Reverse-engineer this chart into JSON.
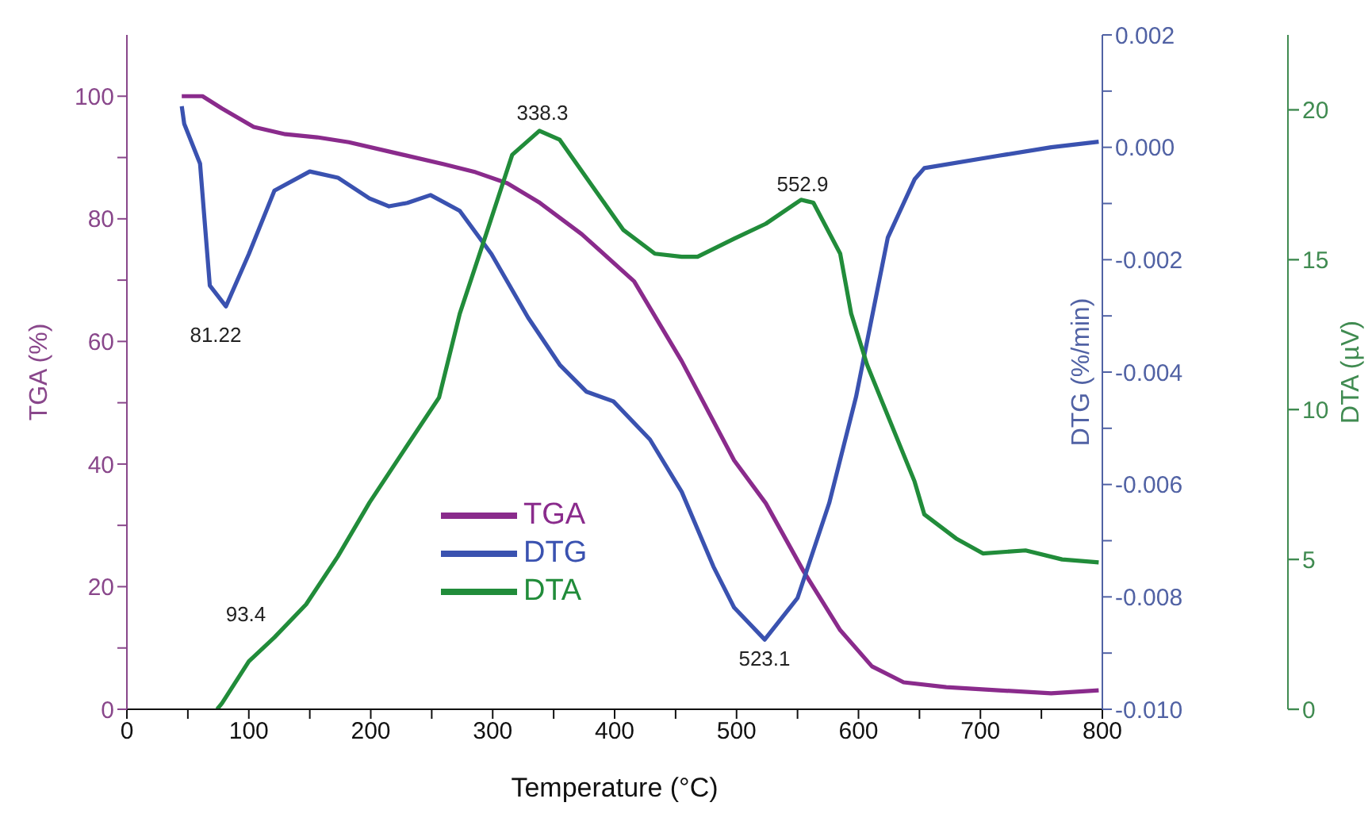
{
  "chart_data": {
    "type": "line",
    "xlabel": "Temperature (°C)",
    "ylabel": "TGA (%)",
    "y2label": "DTG (%/min)",
    "y3label": "DTA (µV)",
    "xlim": [
      0,
      800
    ],
    "xticks": [
      0,
      {
        "value": 50,
        "label": null
      },
      100,
      {
        "value": 150,
        "label": null
      },
      200,
      {
        "value": 250,
        "label": null
      },
      300,
      {
        "value": 350,
        "label": null
      },
      400,
      {
        "value": 450,
        "label": null
      },
      500,
      {
        "value": 550,
        "label": null
      },
      600,
      {
        "value": 650,
        "label": null
      },
      700,
      {
        "value": 750,
        "label": null
      },
      800
    ],
    "ylim": [
      0,
      110
    ],
    "yticks": [
      0,
      {
        "value": 10,
        "label": null
      },
      20,
      {
        "value": 30,
        "label": null
      },
      40,
      {
        "value": 50,
        "label": null
      },
      60,
      {
        "value": 70,
        "label": null
      },
      80,
      {
        "value": 90,
        "label": null
      },
      100
    ],
    "y2lim": [
      -0.01,
      0.002
    ],
    "y2ticks": [
      {
        "value": -0.01,
        "label": "-0.010"
      },
      {
        "value": -0.009,
        "label": null
      },
      {
        "value": -0.008,
        "label": "-0.008"
      },
      {
        "value": -0.007,
        "label": null
      },
      {
        "value": -0.006,
        "label": "-0.006"
      },
      {
        "value": -0.005,
        "label": null
      },
      {
        "value": -0.004,
        "label": "-0.004"
      },
      {
        "value": -0.003,
        "label": null
      },
      {
        "value": -0.002,
        "label": "-0.002"
      },
      {
        "value": -0.001,
        "label": null
      },
      {
        "value": 0,
        "label": "0.000"
      },
      {
        "value": 0.001,
        "label": null
      },
      {
        "value": 0.002,
        "label": "0.002"
      }
    ],
    "y3lim": [
      0,
      22.5
    ],
    "y3ticks": [
      0,
      5,
      10,
      15,
      20
    ],
    "grid": false,
    "legend": "bottom left",
    "marker": "none",
    "line_style": "solid",
    "series": [
      {
        "name": "TGA",
        "color": "#8a2b8c",
        "axis": "y",
        "x": [
          45,
          62,
          78,
          104,
          130,
          156,
          182,
          221,
          260,
          286,
          312,
          338,
          373,
          416,
          455,
          498,
          524,
          555,
          585,
          611,
          637,
          672,
          715,
          758,
          797
        ],
        "values": [
          100,
          100,
          98,
          95,
          93.8,
          93.3,
          92.5,
          90.7,
          88.9,
          87.6,
          85.8,
          82.7,
          77.5,
          69.8,
          56.8,
          40.6,
          33.6,
          22.5,
          12.9,
          7,
          4.4,
          3.6,
          3.1,
          2.6,
          3.1
        ]
      },
      {
        "name": "DTG",
        "color": "#3a52b0",
        "axis": "y2",
        "x": [
          45,
          47,
          60,
          68,
          81.22,
          100,
          121,
          150,
          173,
          199,
          215,
          230,
          249,
          273,
          299,
          329,
          355,
          377,
          399,
          429,
          455,
          481,
          498,
          523.1,
          550,
          576,
          598,
          624,
          646,
          654,
          715,
          758,
          797
        ],
        "values": [
          0.00073,
          0.00042,
          -0.00029,
          -0.00246,
          -0.00283,
          -0.0019,
          -0.00077,
          -0.00043,
          -0.00054,
          -0.00091,
          -0.00105,
          -0.00099,
          -0.00085,
          -0.00113,
          -0.0019,
          -0.00303,
          -0.00387,
          -0.00435,
          -0.00452,
          -0.0052,
          -0.00613,
          -0.00746,
          -0.00819,
          -0.00876,
          -0.00802,
          -0.00633,
          -0.00444,
          -0.00161,
          -0.00057,
          -0.00037,
          -0.00015,
          0,
          0.0001
        ]
      },
      {
        "name": "DTA",
        "color": "#218c3a",
        "axis": "y3",
        "x": [
          74,
          78,
          100,
          121,
          147,
          173,
          199,
          225,
          256,
          273,
          295,
          316,
          338.3,
          355,
          381,
          407,
          433,
          455,
          468,
          498,
          524,
          552.9,
          563,
          585,
          594,
          607,
          620,
          646,
          654,
          680,
          702,
          737,
          767,
          797
        ],
        "values": [
          0,
          0.2,
          1.6,
          2.4,
          3.5,
          5.1,
          6.9,
          8.5,
          10.4,
          13.2,
          15.9,
          18.5,
          19.3,
          19,
          17.5,
          16,
          15.2,
          15.1,
          15.1,
          15.7,
          16.2,
          17,
          16.9,
          15.2,
          13.2,
          11.5,
          10.2,
          7.6,
          6.5,
          5.7,
          5.2,
          5.3,
          5,
          4.9
        ]
      }
    ],
    "annotations": [
      "81.22",
      "338.3",
      "552.9",
      "523.1",
      "93.4"
    ]
  }
}
